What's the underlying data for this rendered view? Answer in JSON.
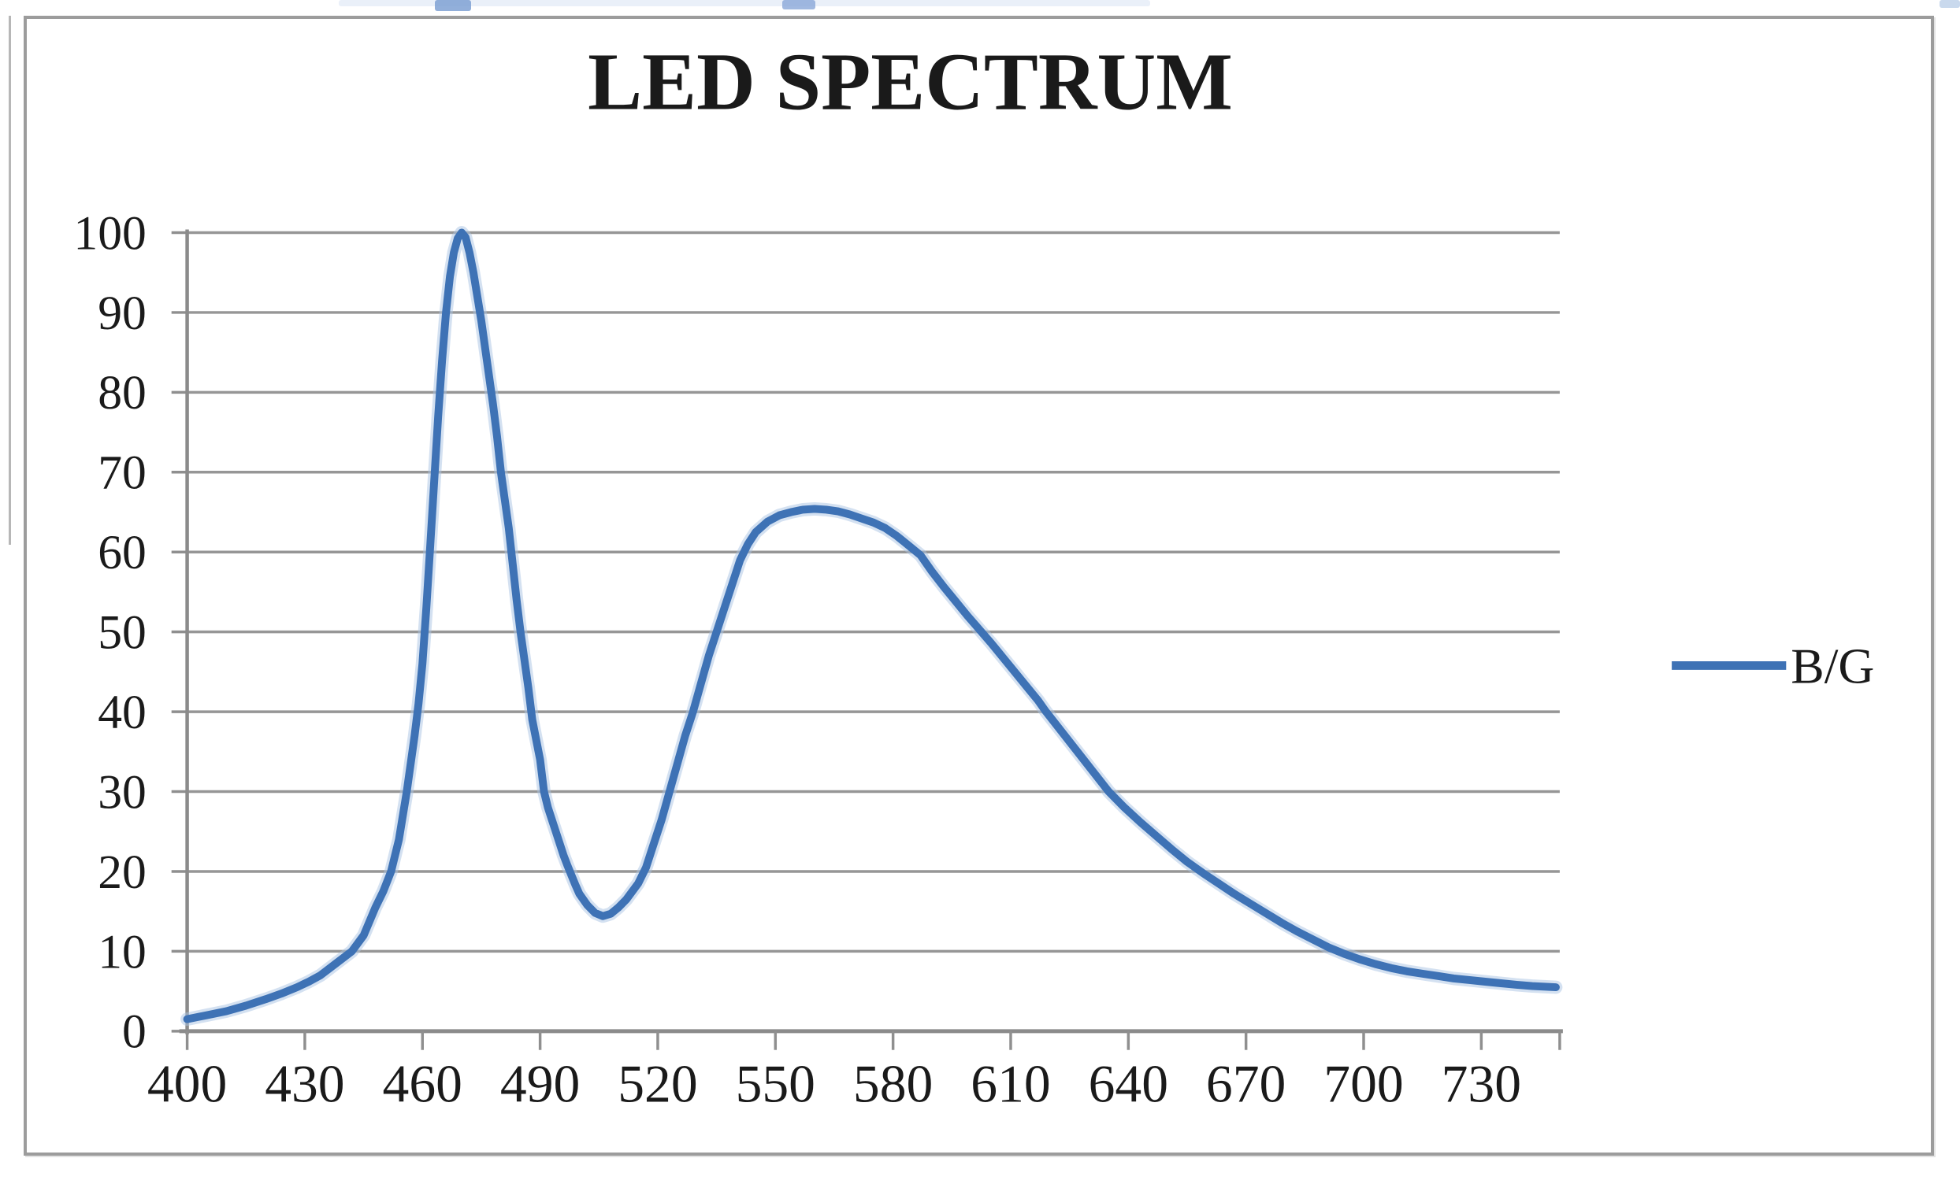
{
  "chart_data": {
    "type": "line",
    "title": "LED SPECTRUM",
    "xlabel": "",
    "ylabel": "",
    "xlim": [
      400,
      750
    ],
    "ylim": [
      0,
      100
    ],
    "x_ticks": [
      400,
      430,
      460,
      490,
      520,
      550,
      580,
      610,
      640,
      670,
      700,
      730
    ],
    "y_ticks": [
      0,
      10,
      20,
      30,
      40,
      50,
      60,
      70,
      80,
      90,
      100
    ],
    "grid": "horizontal",
    "legend_position": "right-middle",
    "series": [
      {
        "name": "B/G",
        "color": "#3e72b5",
        "points": [
          [
            400,
            1.5
          ],
          [
            405,
            2
          ],
          [
            410,
            2.5
          ],
          [
            415,
            3.2
          ],
          [
            420,
            4
          ],
          [
            424,
            4.7
          ],
          [
            428,
            5.5
          ],
          [
            431,
            6.2
          ],
          [
            434,
            7
          ],
          [
            438,
            8.5
          ],
          [
            442,
            10
          ],
          [
            445,
            12
          ],
          [
            448,
            15.5
          ],
          [
            450,
            17.5
          ],
          [
            452,
            20
          ],
          [
            454,
            24
          ],
          [
            456,
            30
          ],
          [
            458,
            37
          ],
          [
            459,
            41
          ],
          [
            460,
            46
          ],
          [
            461,
            53
          ],
          [
            462,
            61
          ],
          [
            463,
            69
          ],
          [
            464,
            77
          ],
          [
            465,
            84
          ],
          [
            466,
            90
          ],
          [
            467,
            94.5
          ],
          [
            468,
            97.5
          ],
          [
            469,
            99.3
          ],
          [
            470,
            100
          ],
          [
            471,
            99.4
          ],
          [
            472,
            97.5
          ],
          [
            473,
            95
          ],
          [
            474,
            92
          ],
          [
            475,
            89
          ],
          [
            476,
            85.5
          ],
          [
            477,
            82
          ],
          [
            478,
            78.5
          ],
          [
            479,
            74.5
          ],
          [
            480,
            70
          ],
          [
            481,
            66.5
          ],
          [
            482,
            63
          ],
          [
            483,
            58.5
          ],
          [
            484,
            54
          ],
          [
            485,
            50
          ],
          [
            486,
            46.5
          ],
          [
            487,
            43
          ],
          [
            488,
            39
          ],
          [
            489,
            36.5
          ],
          [
            490,
            34
          ],
          [
            491,
            30
          ],
          [
            492,
            28
          ],
          [
            493,
            26.5
          ],
          [
            494,
            25
          ],
          [
            495,
            23.5
          ],
          [
            496,
            22
          ],
          [
            497,
            20.7
          ],
          [
            498,
            19.5
          ],
          [
            499,
            18.3
          ],
          [
            500,
            17.2
          ],
          [
            502,
            15.8
          ],
          [
            504,
            14.8
          ],
          [
            506,
            14.4
          ],
          [
            508,
            14.7
          ],
          [
            510,
            15.5
          ],
          [
            512,
            16.5
          ],
          [
            515,
            18.5
          ],
          [
            517,
            20.5
          ],
          [
            519,
            23.5
          ],
          [
            521,
            26.5
          ],
          [
            523,
            30
          ],
          [
            525,
            33.5
          ],
          [
            527,
            37
          ],
          [
            529,
            40
          ],
          [
            531,
            43.5
          ],
          [
            533,
            47
          ],
          [
            535,
            50
          ],
          [
            537,
            53
          ],
          [
            539,
            56
          ],
          [
            541,
            59
          ],
          [
            543,
            61
          ],
          [
            545,
            62.5
          ],
          [
            548,
            63.8
          ],
          [
            551,
            64.6
          ],
          [
            554,
            65
          ],
          [
            557,
            65.3
          ],
          [
            560,
            65.4
          ],
          [
            563,
            65.3
          ],
          [
            566,
            65.1
          ],
          [
            569,
            64.7
          ],
          [
            572,
            64.2
          ],
          [
            575,
            63.7
          ],
          [
            578,
            63
          ],
          [
            581,
            62
          ],
          [
            584,
            60.8
          ],
          [
            587,
            59.6
          ],
          [
            590,
            57.5
          ],
          [
            593,
            55.6
          ],
          [
            596,
            53.8
          ],
          [
            599,
            52
          ],
          [
            602,
            50.3
          ],
          [
            605,
            48.6
          ],
          [
            608,
            46.8
          ],
          [
            611,
            45
          ],
          [
            614,
            43.2
          ],
          [
            617,
            41.4
          ],
          [
            619,
            40
          ],
          [
            623,
            37.5
          ],
          [
            627,
            35
          ],
          [
            631,
            32.5
          ],
          [
            635,
            30
          ],
          [
            639,
            28
          ],
          [
            643,
            26.2
          ],
          [
            647,
            24.5
          ],
          [
            651,
            22.8
          ],
          [
            655,
            21.2
          ],
          [
            659,
            19.8
          ],
          [
            663,
            18.5
          ],
          [
            667,
            17.2
          ],
          [
            671,
            16
          ],
          [
            675,
            14.8
          ],
          [
            679,
            13.6
          ],
          [
            683,
            12.5
          ],
          [
            687,
            11.5
          ],
          [
            691,
            10.5
          ],
          [
            695,
            9.7
          ],
          [
            699,
            9
          ],
          [
            703,
            8.4
          ],
          [
            707,
            7.9
          ],
          [
            711,
            7.5
          ],
          [
            715,
            7.2
          ],
          [
            719,
            6.9
          ],
          [
            723,
            6.6
          ],
          [
            727,
            6.4
          ],
          [
            731,
            6.2
          ],
          [
            735,
            6
          ],
          [
            739,
            5.8
          ],
          [
            743,
            5.65
          ],
          [
            747,
            5.55
          ],
          [
            749,
            5.5
          ]
        ]
      }
    ]
  },
  "colors": {
    "line": "#3e72b5",
    "line_halo": "#a9c3e4",
    "gridline": "#969696",
    "axis": "#8b8b8b",
    "tick": "#8f8f8f",
    "border": "#9c9c9c",
    "text": "#1a1a1a",
    "background": "#ffffff"
  }
}
